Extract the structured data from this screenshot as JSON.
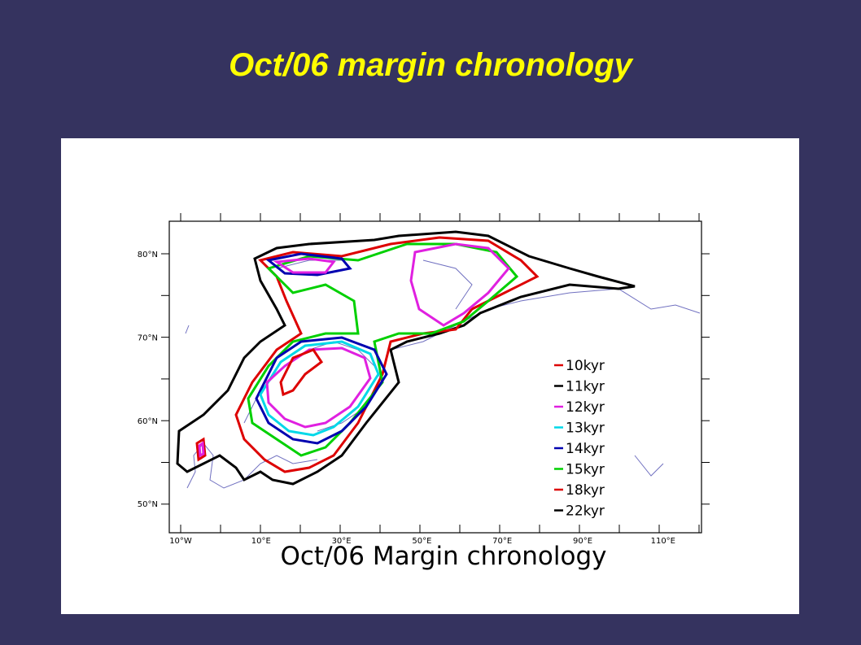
{
  "title": "Oct/06 margin chronology",
  "map": {
    "caption": "Oct/06 Margin chronology",
    "lat_labels": [
      "80°N",
      "70°N",
      "60°N",
      "50°N"
    ],
    "lon_labels": [
      "10°W",
      "10°E",
      "30°E",
      "50°E",
      "70°E",
      "90°E",
      "110°E"
    ],
    "legend": [
      {
        "label": "10kyr",
        "color": "#dd0000"
      },
      {
        "label": "11kyr",
        "color": "#000000"
      },
      {
        "label": "12kyr",
        "color": "#e020e0"
      },
      {
        "label": "13kyr",
        "color": "#00d8e8"
      },
      {
        "label": "14kyr",
        "color": "#0000b0"
      },
      {
        "label": "15kyr",
        "color": "#00d000"
      },
      {
        "label": "18kyr",
        "color": "#dd0000"
      },
      {
        "label": "22kyr",
        "color": "#000000"
      }
    ]
  }
}
